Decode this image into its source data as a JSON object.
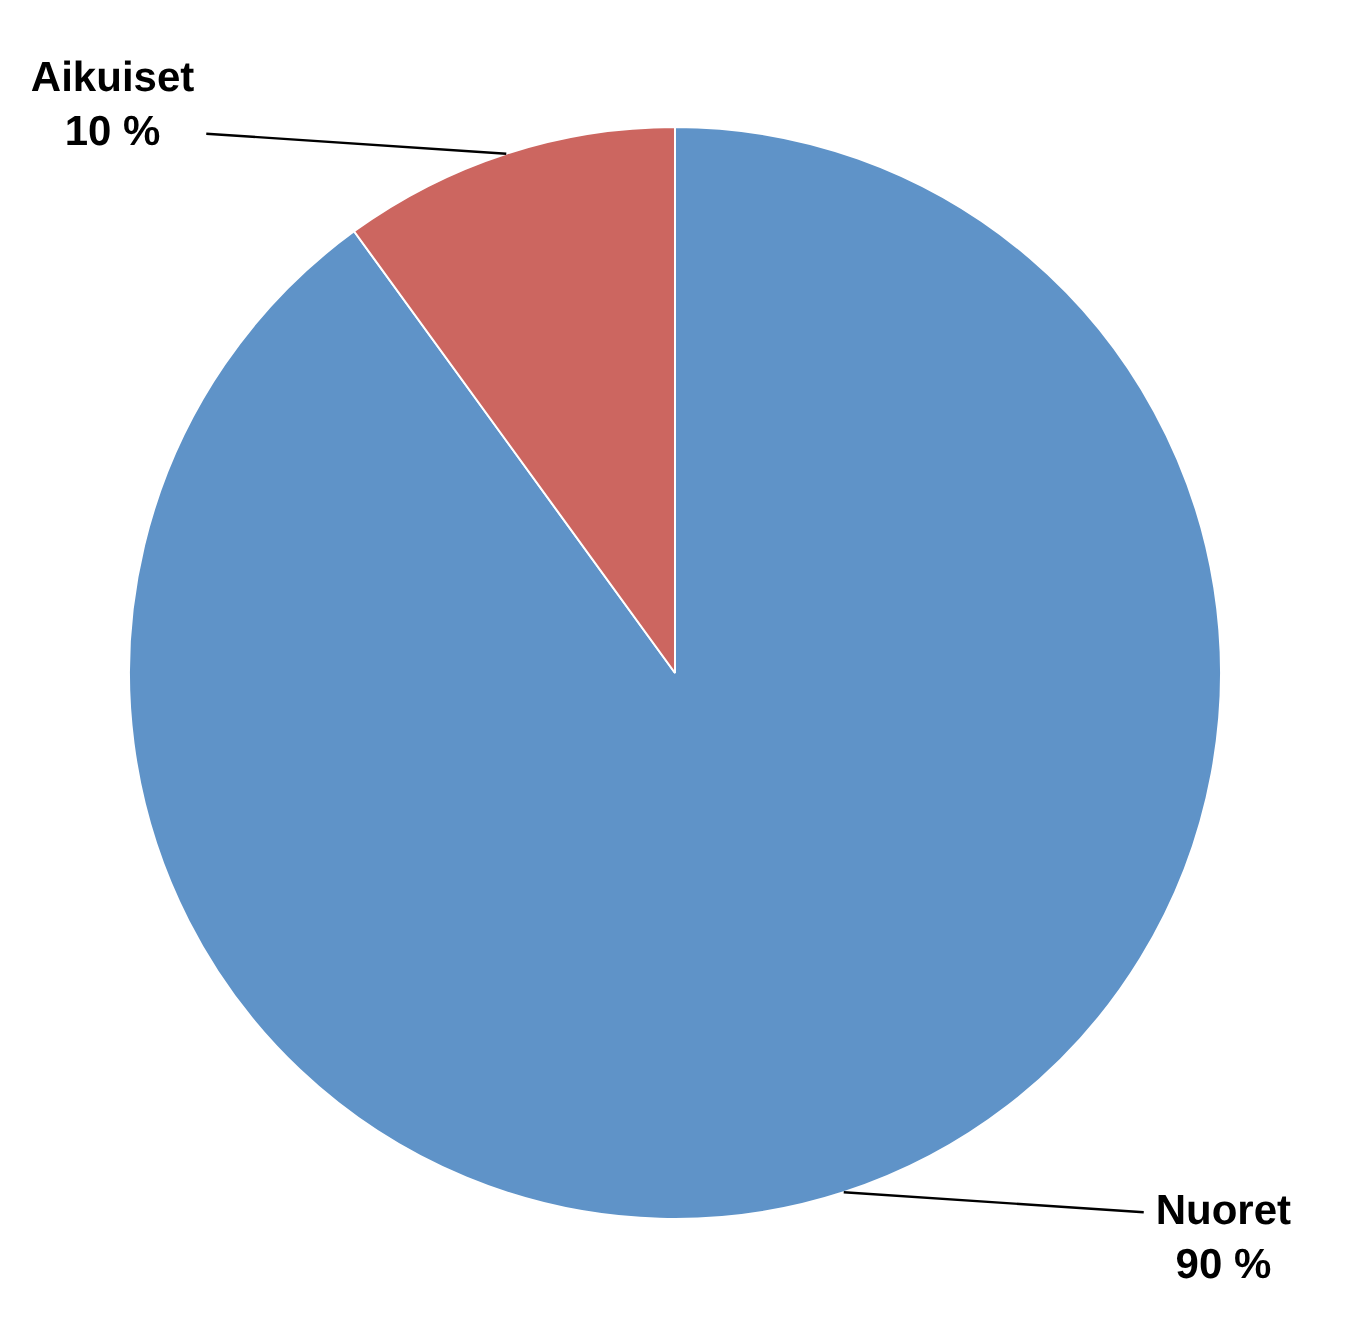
{
  "chart_data": {
    "type": "pie",
    "categories": [
      "Nuoret",
      "Aikuiset"
    ],
    "values": [
      90,
      10
    ],
    "colors": [
      "#5f93c8",
      "#cc6660"
    ],
    "value_labels": [
      "90 %",
      "10 %"
    ],
    "legend": false
  }
}
